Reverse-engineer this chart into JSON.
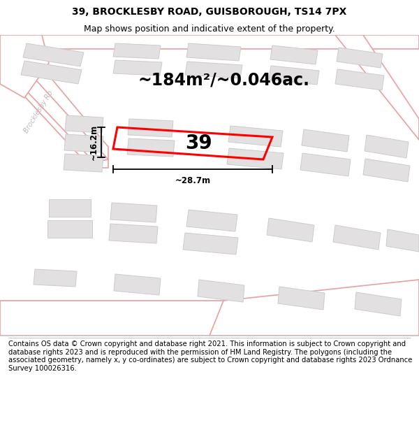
{
  "title": "39, BROCKLESBY ROAD, GUISBOROUGH, TS14 7PX",
  "subtitle": "Map shows position and indicative extent of the property.",
  "area_text": "~184m²/~0.046ac.",
  "width_label": "~28.7m",
  "height_label": "~16.2m",
  "number_label": "39",
  "footer": "Contains OS data © Crown copyright and database right 2021. This information is subject to Crown copyright and database rights 2023 and is reproduced with the permission of HM Land Registry. The polygons (including the associated geometry, namely x, y co-ordinates) are subject to Crown copyright and database rights 2023 Ordnance Survey 100026316.",
  "map_bg": "#eeecec",
  "road_fill": "#ffffff",
  "road_edge": "#e8a0a0",
  "plot_edge": "#ff0000",
  "bld_fill": "#e2e0e0",
  "bld_edge": "#cccccc",
  "title_fontsize": 10,
  "subtitle_fontsize": 9,
  "area_fontsize": 17,
  "number_fontsize": 20,
  "footer_fontsize": 7.2,
  "road_label_color": "#c0b8b8",
  "dim_color": "#000000"
}
